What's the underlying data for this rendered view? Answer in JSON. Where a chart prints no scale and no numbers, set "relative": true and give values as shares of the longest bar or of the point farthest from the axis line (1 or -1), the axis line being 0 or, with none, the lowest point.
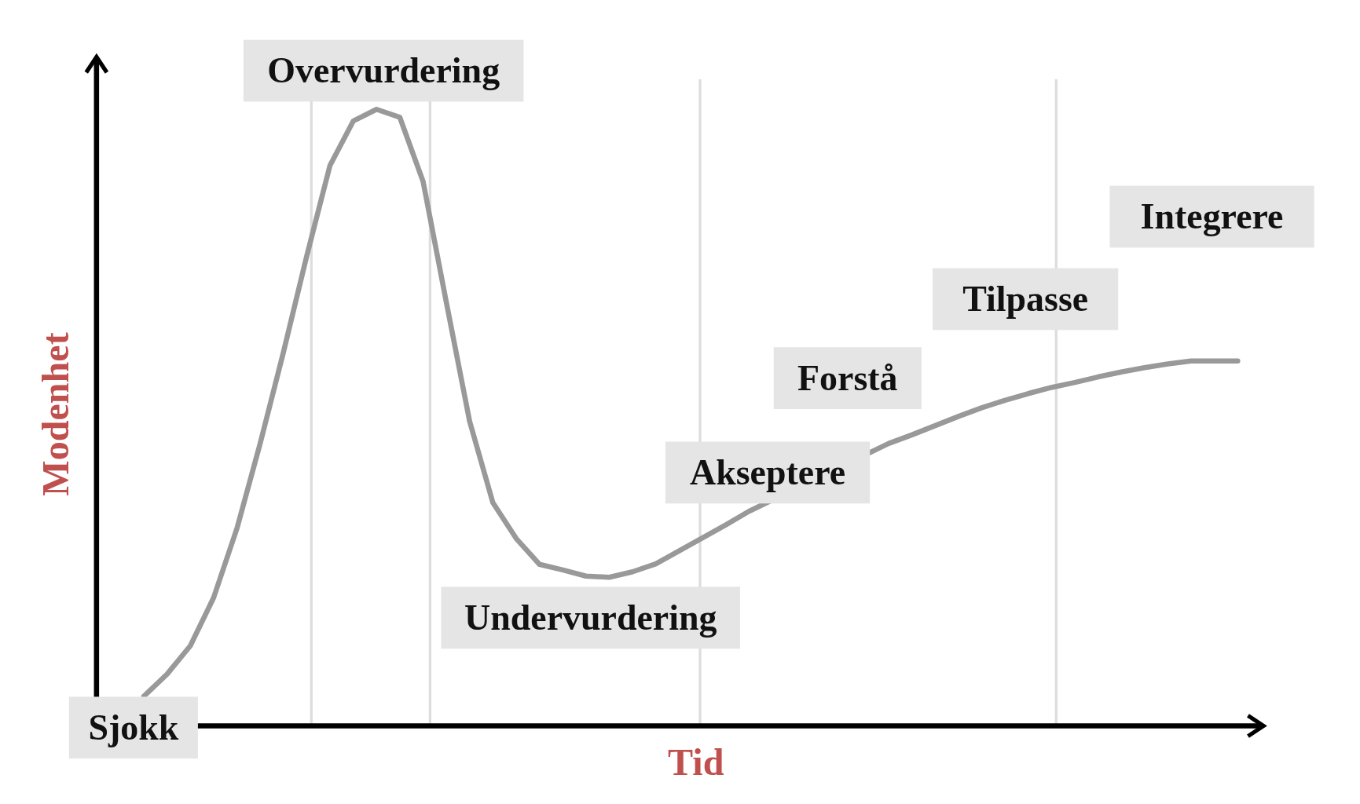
{
  "chart_data": {
    "type": "line",
    "relative": true,
    "xlabel": "Tid",
    "ylabel": "Modenhet",
    "categories": [
      null,
      null,
      null,
      null,
      null,
      null,
      null,
      null,
      null,
      null,
      null,
      null,
      null,
      null,
      null,
      null,
      null,
      null,
      null,
      null,
      null,
      null,
      null,
      null,
      null,
      null,
      null,
      null,
      null,
      null,
      null,
      null,
      null,
      null,
      null,
      null,
      null,
      null,
      null,
      null,
      null,
      null,
      null,
      null,
      null,
      null,
      null,
      null
    ],
    "series": [
      {
        "color": "#999999",
        "values": [
          0.048,
          0.084,
          0.13,
          0.208,
          0.32,
          0.458,
          0.606,
          0.762,
          0.909,
          0.981,
          1,
          0.987,
          0.883,
          0.687,
          0.494,
          0.362,
          0.304,
          0.262,
          0.253,
          0.243,
          0.241,
          0.25,
          0.263,
          0.284,
          0.305,
          0.326,
          0.348,
          null,
          null,
          null,
          null,
          null,
          0.458,
          0.472,
          0.487,
          0.502,
          0.516,
          0.528,
          0.539,
          0.549,
          0.557,
          0.566,
          0.574,
          0.581,
          0.587,
          0.592,
          0.592,
          0.592
        ]
      }
    ],
    "annotations": [
      "Sjokk",
      "Overvurdering",
      "Undervurdering",
      "Akseptere",
      "Forstå",
      "Tilpasse",
      "Integrere"
    ]
  }
}
